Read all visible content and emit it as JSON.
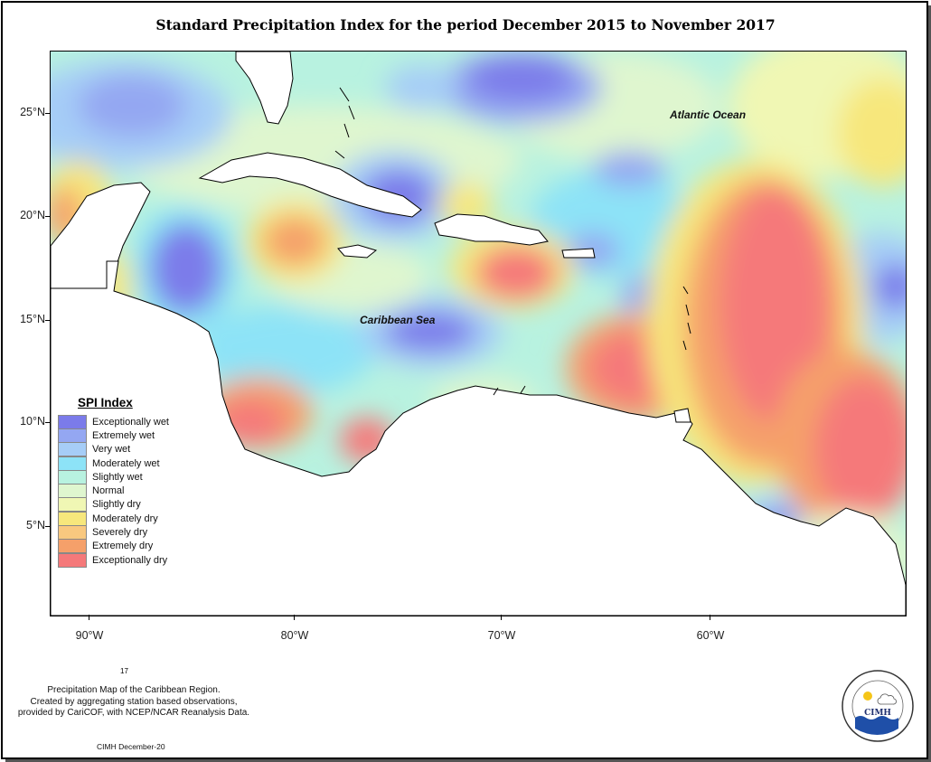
{
  "title": "Standard Precipitation Index for the period December 2015 to November 2017",
  "map": {
    "ocean_labels": [
      "Atlantic Ocean",
      "Caribbean Sea"
    ],
    "lat_labels": [
      "25°N",
      "20°N",
      "15°N",
      "10°N",
      "5°N"
    ],
    "lon_labels": [
      "90°W",
      "80°W",
      "70°W",
      "60°W"
    ]
  },
  "legend": {
    "title": "SPI Index",
    "items": [
      {
        "label": "Exceptionally wet",
        "color": "#7b7bea"
      },
      {
        "label": "Extremely wet",
        "color": "#94a7f2"
      },
      {
        "label": "Very wet",
        "color": "#a6cdf7"
      },
      {
        "label": "Moderately wet",
        "color": "#8de3f7"
      },
      {
        "label": "Slightly wet",
        "color": "#b8f2e0"
      },
      {
        "label": "Normal",
        "color": "#dff6cf"
      },
      {
        "label": "Slightly dry",
        "color": "#f0f7b4"
      },
      {
        "label": "Moderately dry",
        "color": "#f7e77c"
      },
      {
        "label": "Severely dry",
        "color": "#f9c87f"
      },
      {
        "label": "Extremely dry",
        "color": "#f5a06a"
      },
      {
        "label": "Exceptionally dry",
        "color": "#f5797a"
      }
    ]
  },
  "footer": {
    "number": "17",
    "caption_lines": [
      "Precipitation Map of the Caribbean Region.",
      "Created by aggregating station based observations,",
      "provided by CariCOF, with NCEP/NCAR Reanalysis Data."
    ],
    "credit": "CIMH December-20",
    "logo_text": "CIMH"
  }
}
